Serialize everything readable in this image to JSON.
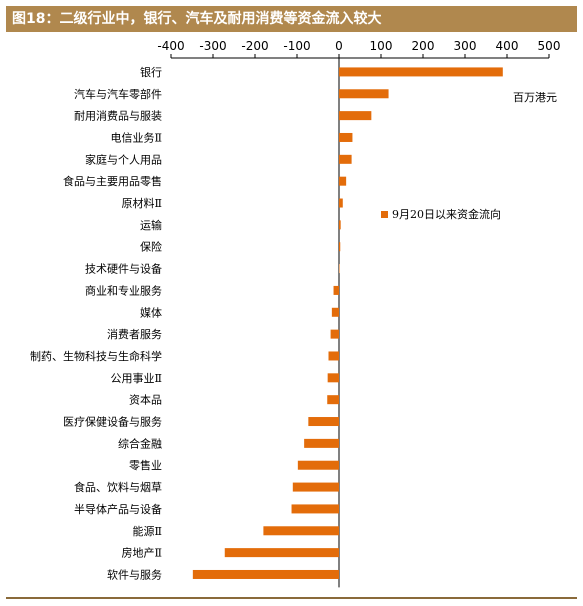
{
  "figure": {
    "title": "图18：二级行业中，银行、汽车及耐用消费等资金流入较大",
    "unit_label": "百万港元"
  },
  "colors": {
    "bar": "#e36c0a",
    "title_bg": "#b0884e",
    "axis": "#000000"
  },
  "chart_data": {
    "type": "bar",
    "orientation": "horizontal",
    "title": "图18：二级行业中，银行、汽车及耐用消费等资金流入较大",
    "xlabel": "百万港元",
    "ylabel": "",
    "xlim": [
      -400,
      500
    ],
    "x_ticks": [
      -400,
      -300,
      -200,
      -100,
      0,
      100,
      200,
      300,
      400,
      500
    ],
    "x_tick_labels": [
      "-400",
      "-300",
      "-200",
      "-100",
      "0",
      "100",
      "200",
      "300",
      "400",
      "500"
    ],
    "grid": false,
    "legend_position": "right",
    "categories": [
      "银行",
      "汽车与汽车零部件",
      "耐用消费品与服装",
      "电信业务Ⅱ",
      "家庭与个人用品",
      "食品与主要用品零售",
      "原材料Ⅱ",
      "运输",
      "保险",
      "技术硬件与设备",
      "商业和专业服务",
      "媒体",
      "消费者服务",
      "制药、生物科技与生命科学",
      "公用事业Ⅱ",
      "资本品",
      "医疗保健设备与服务",
      "综合金融",
      "零售业",
      "食品、饮料与烟草",
      "半导体产品与设备",
      "能源Ⅱ",
      "房地产Ⅱ",
      "软件与服务"
    ],
    "series": [
      {
        "name": "9月20日以来资金流向",
        "values": [
          390,
          118,
          77,
          32,
          30,
          17,
          9,
          4,
          3,
          0,
          -13,
          -17,
          -20,
          -25,
          -27,
          -28,
          -73,
          -83,
          -98,
          -110,
          -113,
          -180,
          -272,
          -348
        ]
      }
    ]
  }
}
